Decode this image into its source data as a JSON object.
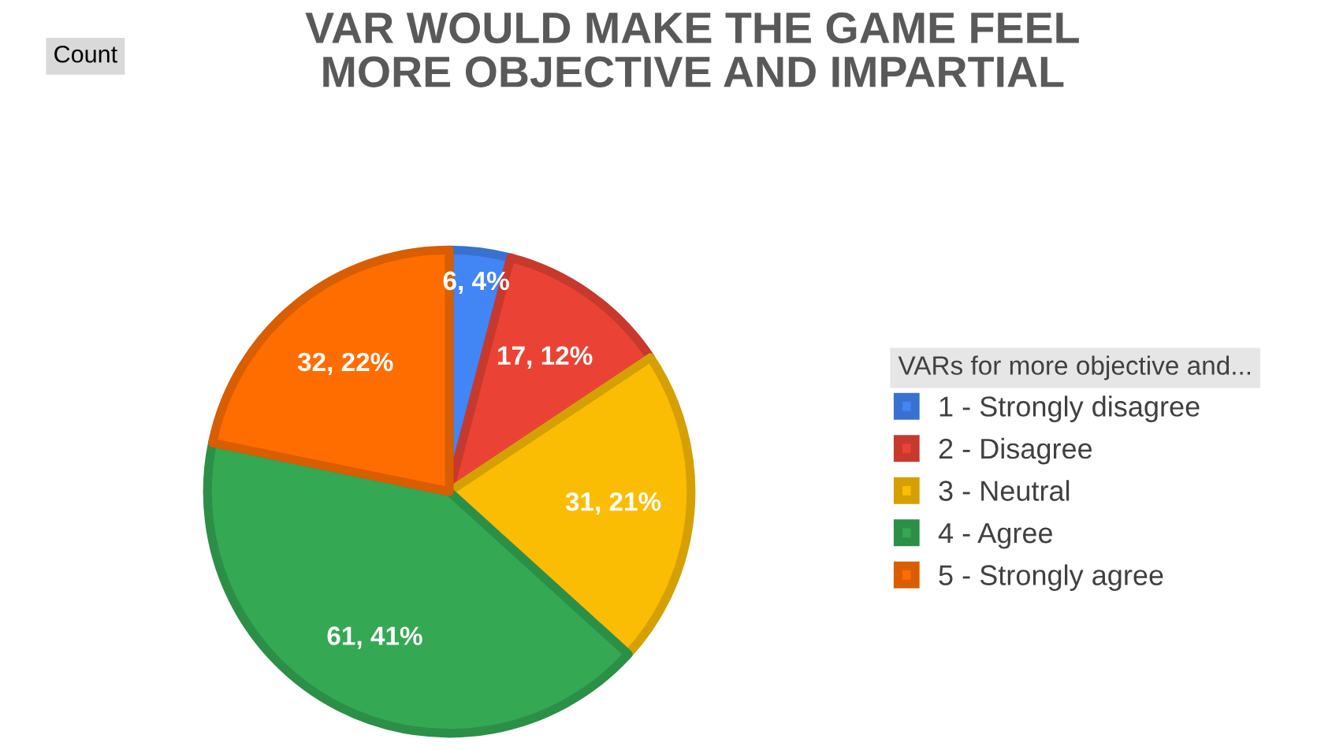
{
  "chart_data": {
    "type": "pie",
    "title": "VAR WOULD MAKE THE GAME FEEL\nMORE OBJECTIVE AND IMPARTIAL",
    "legend_title": "VARs for more objective and...",
    "annotations": [
      "Count"
    ],
    "categories": [
      "1 - Strongly disagree",
      "2 - Disagree",
      "3 - Neutral",
      "4 - Agree",
      "5 - Strongly agree"
    ],
    "values": [
      6,
      17,
      31,
      61,
      32
    ],
    "colors": [
      "#4285f4",
      "#ea4335",
      "#fbbc04",
      "#34a853",
      "#ff6d01"
    ],
    "value_labels": [
      "6, 4%",
      "17, 12%",
      "31, 21%",
      "61, 41%",
      "32, 22%"
    ],
    "legend": "right"
  }
}
